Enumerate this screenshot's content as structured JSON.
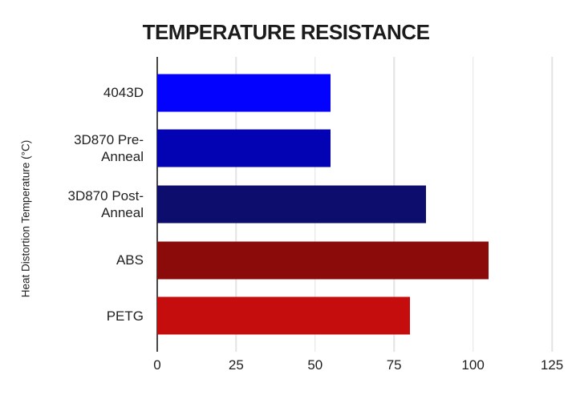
{
  "chart_data": {
    "type": "bar",
    "orientation": "horizontal",
    "title": "TEMPERATURE RESISTANCE",
    "ylabel": "Heat Distortion Temperature (°C)",
    "xlabel": "",
    "categories": [
      "4043D",
      "3D870 Pre-Anneal",
      "3D870 Post-Anneal",
      "ABS",
      "PETG"
    ],
    "categories_display": [
      [
        "4043D"
      ],
      [
        "3D870 Pre-",
        "Anneal"
      ],
      [
        "3D870 Post-",
        "Anneal"
      ],
      [
        "ABS"
      ],
      [
        "PETG"
      ]
    ],
    "values": [
      55,
      55,
      85,
      105,
      80
    ],
    "bar_colors": [
      "#0402ff",
      "#0303b4",
      "#0d0d6e",
      "#8b0b0b",
      "#c60d0d"
    ],
    "xlim": [
      0,
      125
    ],
    "xticks": [
      0,
      25,
      50,
      75,
      100,
      125
    ],
    "grid": true,
    "legend": "none",
    "style_colors": {
      "background": "#ffffff",
      "gridline": "#e3e3e3",
      "axis_baseline": "#474747",
      "title_text": "#1b1b1b",
      "axis_text": "#1f1f1f"
    }
  }
}
